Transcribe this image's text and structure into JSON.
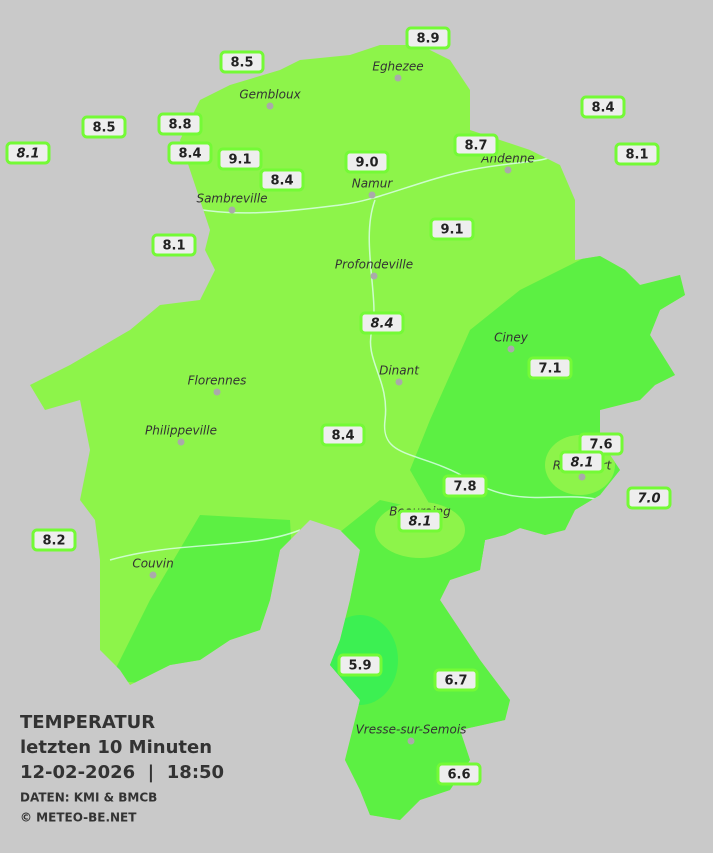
{
  "title": {
    "heading": "TEMPERATUR",
    "period": "letzten 10 Minuten",
    "datetime": "12-02-2026  |  18:50",
    "source": "DATEN: KMI & BMCB",
    "copyright": "© METEO-BE.NET"
  },
  "cities": [
    "Eghezee",
    "Gembloux",
    "Andenne",
    "Namur",
    "Sambreville",
    "Profondeville",
    "Ciney",
    "Dinant",
    "Florennes",
    "Philippeville",
    "Rochefort",
    "Beauraing",
    "Couvin",
    "Vresse-sur-Semois"
  ],
  "stations": [
    "8.9",
    "8.5",
    "8.4",
    "8.5",
    "8.8",
    "8.1",
    "8.4",
    "9.1",
    "8.1",
    "9.0",
    "8.7",
    "8.4",
    "9.1",
    "8.1",
    "8.4",
    "7.1",
    "8.4",
    "7.6",
    "7.8",
    "7.0",
    "8.1",
    "8.2",
    "5.9",
    "6.7",
    "6.6",
    "8.1"
  ]
}
